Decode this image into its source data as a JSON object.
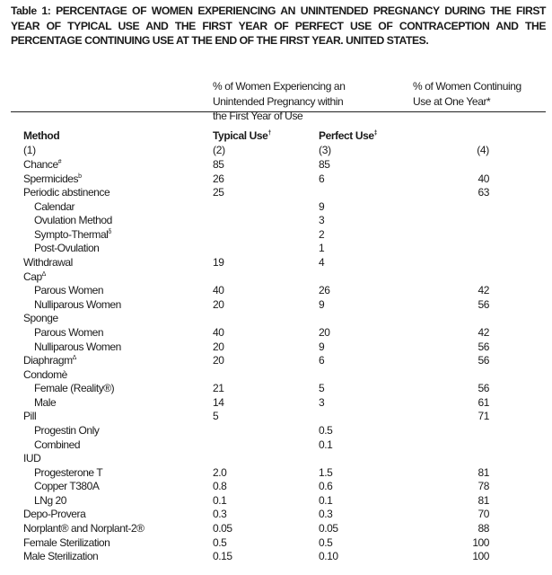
{
  "title": [
    "Table 1: PERCENTAGE OF WOMEN EXPERIENCING AN UNINTENDED PREGNANCY DURING THE FIRST",
    "YEAR OF TYPICAL USE AND THE FIRST YEAR OF PERFECT USE OF CONTRACEPTION AND THE",
    "PERCENTAGE CONTINUING USE AT THE END OF THE FIRST YEAR. UNITED STATES."
  ],
  "group_headers": {
    "pregnancy": [
      "% of Women Experiencing an",
      "Unintended Pregnancy within",
      "the First Year of Use"
    ],
    "continuing": [
      "% of Women Continuing",
      "Use at One Year*"
    ]
  },
  "columns": {
    "method": {
      "label": "Method",
      "num": "(1)"
    },
    "typical": {
      "label": "Typical Use",
      "sup": "†",
      "num": "(2)"
    },
    "perfect": {
      "label": "Perfect Use",
      "sup": "‡",
      "num": "(3)"
    },
    "continuing": {
      "num": "(4)"
    }
  },
  "rows": [
    {
      "method": "Chance",
      "sup": "#",
      "indent": false,
      "typical": "85",
      "perfect": "85",
      "continuing": ""
    },
    {
      "method": "Spermicides",
      "sup": "b",
      "indent": false,
      "typical": "26",
      "perfect": "6",
      "continuing": "40"
    },
    {
      "method": "Periodic abstinence",
      "sup": "",
      "indent": false,
      "typical": "25",
      "perfect": "",
      "continuing": "63"
    },
    {
      "method": "Calendar",
      "sup": "",
      "indent": true,
      "typical": "",
      "perfect": "9",
      "continuing": ""
    },
    {
      "method": "Ovulation Method",
      "sup": "",
      "indent": true,
      "typical": "",
      "perfect": "3",
      "continuing": ""
    },
    {
      "method": "Sympto-Thermal",
      "sup": "δ",
      "indent": true,
      "typical": "",
      "perfect": "2",
      "continuing": ""
    },
    {
      "method": "Post-Ovulation",
      "sup": "",
      "indent": true,
      "typical": "",
      "perfect": "1",
      "continuing": ""
    },
    {
      "method": "Withdrawal",
      "sup": "",
      "indent": false,
      "typical": "19",
      "perfect": "4",
      "continuing": ""
    },
    {
      "method": "Cap",
      "sup": "Δ",
      "indent": false,
      "typical": "",
      "perfect": "",
      "continuing": ""
    },
    {
      "method": "Parous Women",
      "sup": "",
      "indent": true,
      "typical": "40",
      "perfect": "26",
      "continuing": "42"
    },
    {
      "method": "Nulliparous Women",
      "sup": "",
      "indent": true,
      "typical": "20",
      "perfect": "9",
      "continuing": "56"
    },
    {
      "method": "Sponge",
      "sup": "",
      "indent": false,
      "typical": "",
      "perfect": "",
      "continuing": ""
    },
    {
      "method": "Parous Women",
      "sup": "",
      "indent": true,
      "typical": "40",
      "perfect": "20",
      "continuing": "42"
    },
    {
      "method": "Nulliparous Women",
      "sup": "",
      "indent": true,
      "typical": "20",
      "perfect": "9",
      "continuing": "56"
    },
    {
      "method": "Diaphragm",
      "sup": "Δ",
      "indent": false,
      "typical": "20",
      "perfect": "6",
      "continuing": "56"
    },
    {
      "method": "Condomè",
      "sup": "",
      "indent": false,
      "typical": "",
      "perfect": "",
      "continuing": ""
    },
    {
      "method": "Female (Reality®)",
      "sup": "",
      "indent": true,
      "typical": "21",
      "perfect": "5",
      "continuing": "56"
    },
    {
      "method": "Male",
      "sup": "",
      "indent": true,
      "typical": "14",
      "perfect": "3",
      "continuing": "61"
    },
    {
      "method": "Pill",
      "sup": "",
      "indent": false,
      "typical": "5",
      "perfect": "",
      "continuing": "71"
    },
    {
      "method": "Progestin Only",
      "sup": "",
      "indent": true,
      "typical": "",
      "perfect": "0.5",
      "continuing": ""
    },
    {
      "method": "Combined",
      "sup": "",
      "indent": true,
      "typical": "",
      "perfect": "0.1",
      "continuing": ""
    },
    {
      "method": "IUD",
      "sup": "",
      "indent": false,
      "typical": "",
      "perfect": "",
      "continuing": ""
    },
    {
      "method": "Progesterone T",
      "sup": "",
      "indent": true,
      "typical": "2.0",
      "perfect": "1.5",
      "continuing": "81"
    },
    {
      "method": "Copper T380A",
      "sup": "",
      "indent": true,
      "typical": "0.8",
      "perfect": "0.6",
      "continuing": "78"
    },
    {
      "method": "LNg 20",
      "sup": "",
      "indent": true,
      "typical": "0.1",
      "perfect": "0.1",
      "continuing": "81"
    },
    {
      "method": "Depo-Provera",
      "sup": "",
      "indent": false,
      "typical": "0.3",
      "perfect": "0.3",
      "continuing": "70"
    },
    {
      "method": "Norplant® and Norplant-2®",
      "sup": "",
      "indent": false,
      "typical": "0.05",
      "perfect": "0.05",
      "continuing": "88"
    },
    {
      "method": "Female Sterilization",
      "sup": "",
      "indent": false,
      "typical": "0.5",
      "perfect": "0.5",
      "continuing": "100"
    },
    {
      "method": "Male Sterilization",
      "sup": "",
      "indent": false,
      "typical": "0.15",
      "perfect": "0.10",
      "continuing": "100"
    }
  ]
}
